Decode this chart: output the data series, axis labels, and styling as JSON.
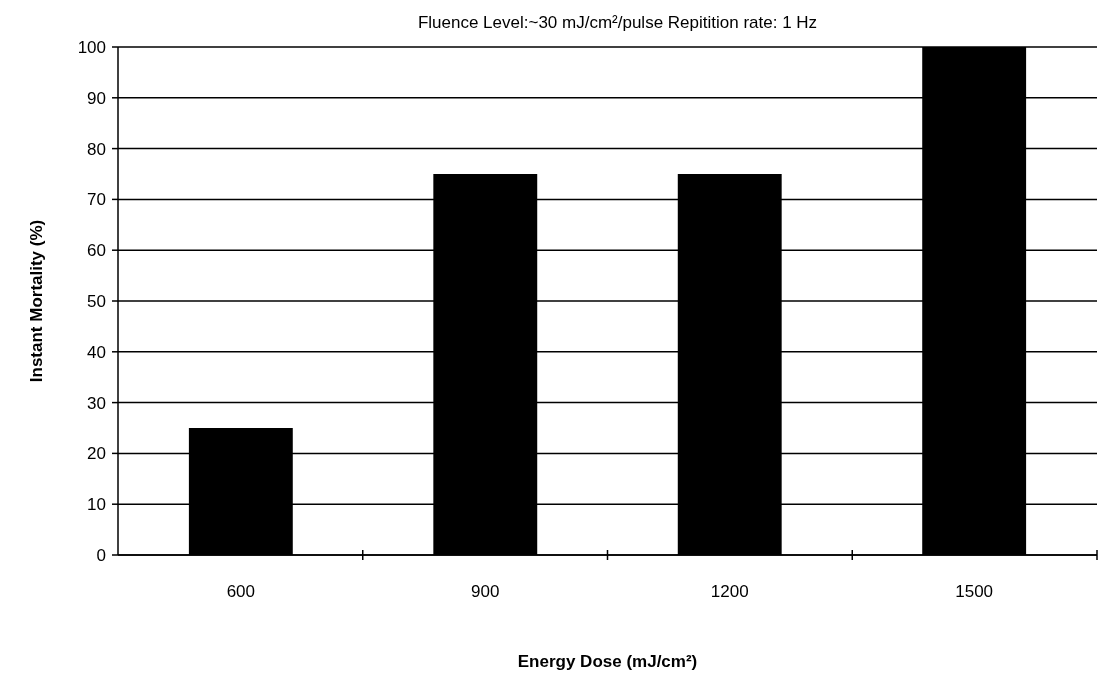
{
  "chart_data": {
    "type": "bar",
    "subtitle": "Fluence Level:~30 mJ/cm²/pulse  Repitition rate: 1 Hz",
    "xlabel": "Energy Dose (mJ/cm²)",
    "ylabel": "Instant Mortality (%)",
    "categories": [
      "600",
      "900",
      "1200",
      "1500"
    ],
    "values": [
      25,
      75,
      75,
      100
    ],
    "color": "#000000",
    "ylim": [
      0,
      100
    ],
    "yticks": [
      0,
      10,
      20,
      30,
      40,
      50,
      60,
      70,
      80,
      90,
      100
    ],
    "grid": "y"
  }
}
